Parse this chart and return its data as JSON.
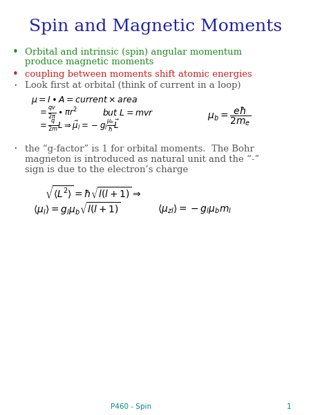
{
  "title": "Spin and Magnetic Moments",
  "title_color": "#2222aa",
  "title_fontsize": 18,
  "bg_color": "#ffffff",
  "bullet_color_green": "#228B22",
  "bullet_color_red": "#cc2222",
  "text_color_dark": "#555555",
  "footer_color": "#008888",
  "footer": "P460 - Spin",
  "page_num": "1"
}
